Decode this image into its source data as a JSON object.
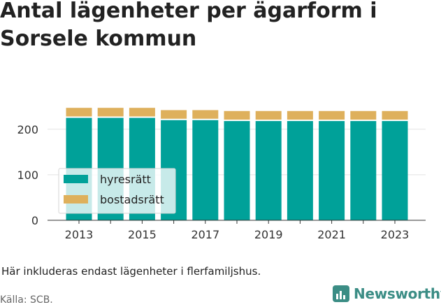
{
  "title_line1": "Antal lägenheter per ägarform i",
  "title_line2": "Sorsele kommun",
  "note": "Här inkluderas endast lägenheter i flerfamiljshus.",
  "source": "Källa: SCB.",
  "brand": {
    "name": "Newsworthy",
    "color": "#3b8d85",
    "icon": "bar-chart-logo-icon"
  },
  "chart_data": {
    "type": "bar",
    "stacked": true,
    "categories": [
      "2013",
      "2014",
      "2015",
      "2016",
      "2017",
      "2018",
      "2019",
      "2020",
      "2021",
      "2022",
      "2023"
    ],
    "series": [
      {
        "name": "hyresrätt",
        "color": "#00a199",
        "values": [
          225,
          225,
          225,
          220,
          220,
          218,
          218,
          218,
          218,
          218,
          218
        ]
      },
      {
        "name": "bostadsrätt",
        "color": "#deb05c",
        "values": [
          22,
          22,
          22,
          22,
          22,
          22,
          22,
          22,
          22,
          22,
          22
        ]
      }
    ],
    "x_tick_labels": [
      "2013",
      "2015",
      "2017",
      "2019",
      "2021",
      "2023"
    ],
    "y_ticks": [
      0,
      100,
      200
    ],
    "ylim": [
      0,
      255
    ],
    "grid": true,
    "legend_position": "bottom-left"
  }
}
